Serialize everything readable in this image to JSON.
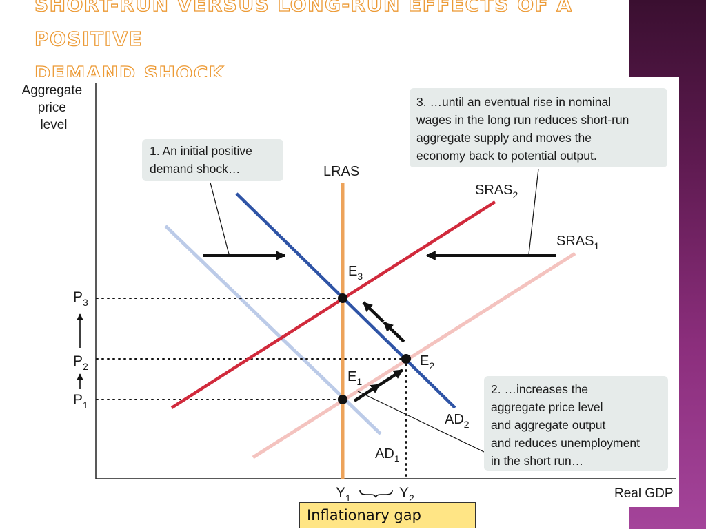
{
  "slide": {
    "title_line1": "Short-run versus long-run effects of a positive",
    "title_line2": "demand shock",
    "colors": {
      "title_fill": "#ffffff",
      "title_outline": "#ec9a35",
      "side_bar": "#8b2e7c"
    }
  },
  "diagram": {
    "y_axis_label": [
      "Aggregate",
      "price",
      "level"
    ],
    "x_axis_label": "Real GDP",
    "curves": {
      "lras": "LRAS",
      "sras2": {
        "base": "SRAS",
        "sub": "2"
      },
      "sras1": {
        "base": "SRAS",
        "sub": "1"
      },
      "ad2": {
        "base": "AD",
        "sub": "2"
      },
      "ad1": {
        "base": "AD",
        "sub": "1"
      }
    },
    "points": {
      "e1": {
        "base": "E",
        "sub": "1"
      },
      "e2": {
        "base": "E",
        "sub": "2"
      },
      "e3": {
        "base": "E",
        "sub": "3"
      }
    },
    "price_levels": {
      "p1": {
        "base": "P",
        "sub": "1"
      },
      "p2": {
        "base": "P",
        "sub": "2"
      },
      "p3": {
        "base": "P",
        "sub": "3"
      }
    },
    "output_levels": {
      "y1": {
        "base": "Y",
        "sub": "1"
      },
      "y2": {
        "base": "Y",
        "sub": "2"
      }
    },
    "callouts": {
      "step1": [
        "1. An initial positive",
        "demand shock…"
      ],
      "step2": [
        "2. …increases the",
        "aggregate price level",
        "and aggregate output",
        "and reduces unemployment",
        "in the short run…"
      ],
      "step3": [
        "3. …until an eventual rise in nominal",
        "wages in the long run reduces short-run",
        "aggregate supply and moves the",
        "economy back to potential output."
      ]
    },
    "colors": {
      "lras": "#eda35a",
      "sras_new": "#d12a3c",
      "sras_old": "#f4c3bf",
      "ad_new": "#2f54a6",
      "ad_old": "#bccbe8",
      "callout_bg": "#e6ebea"
    }
  },
  "gap_label": "Inflationary gap"
}
